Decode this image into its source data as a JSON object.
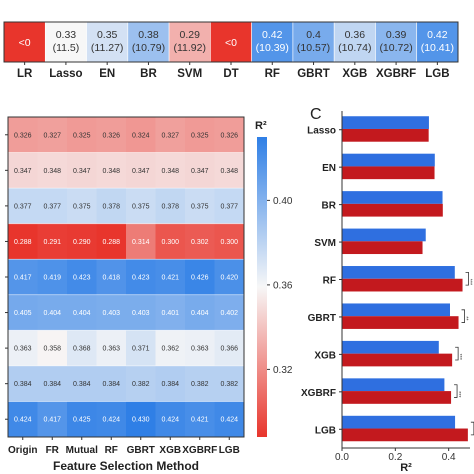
{
  "chart_data": [
    {
      "type": "heatmap",
      "title": "",
      "x_categories": [
        "LR",
        "Lasso",
        "EN",
        "BR",
        "SVM",
        "DT",
        "RF",
        "GBRT",
        "XGB",
        "XGBRF",
        "LGB"
      ],
      "cells": [
        {
          "main": "<0",
          "sub": "",
          "value": 0.2
        },
        {
          "main": "0.33",
          "sub": "(11.5)",
          "value": 0.33
        },
        {
          "main": "0.35",
          "sub": "(11.27)",
          "value": 0.35
        },
        {
          "main": "0.38",
          "sub": "(10.79)",
          "value": 0.38
        },
        {
          "main": "0.29",
          "sub": "(11.92)",
          "value": 0.29
        },
        {
          "main": "<0",
          "sub": "",
          "value": 0.2
        },
        {
          "main": "0.42",
          "sub": "(10.39)",
          "value": 0.42
        },
        {
          "main": "0.4",
          "sub": "(10.57)",
          "value": 0.4
        },
        {
          "main": "0.36",
          "sub": "(10.74)",
          "value": 0.36
        },
        {
          "main": "0.39",
          "sub": "(10.72)",
          "value": 0.39
        },
        {
          "main": "0.42",
          "sub": "(10.41)",
          "value": 0.42
        }
      ]
    },
    {
      "type": "heatmap",
      "xlabel": "Feature Selection Method",
      "x_categories": [
        "Origin",
        "FR",
        "Mutual",
        "RF",
        "GBRT",
        "XGB",
        "XGBRF",
        "LGB"
      ],
      "values": [
        [
          0.326,
          0.327,
          0.325,
          0.326,
          0.324,
          0.327,
          0.325,
          0.326
        ],
        [
          0.347,
          0.348,
          0.347,
          0.348,
          0.347,
          0.348,
          0.347,
          0.348
        ],
        [
          0.377,
          0.377,
          0.375,
          0.378,
          0.375,
          0.378,
          0.375,
          0.377
        ],
        [
          0.288,
          0.291,
          0.29,
          0.288,
          0.314,
          0.3,
          0.302,
          0.3
        ],
        [
          0.417,
          0.419,
          0.423,
          0.418,
          0.423,
          0.421,
          0.426,
          0.42
        ],
        [
          0.405,
          0.404,
          0.404,
          0.403,
          0.403,
          0.401,
          0.404,
          0.402
        ],
        [
          0.363,
          0.358,
          0.368,
          0.363,
          0.371,
          0.362,
          0.363,
          0.366
        ],
        [
          0.384,
          0.384,
          0.384,
          0.384,
          0.382,
          0.384,
          0.382,
          0.382
        ],
        [
          0.424,
          0.417,
          0.425,
          0.424,
          0.43,
          0.424,
          0.421,
          0.424
        ]
      ],
      "colorbar": {
        "label": "R²",
        "ticks": [
          "0.40",
          "0.36",
          "0.32"
        ],
        "tick_values": [
          0.4,
          0.36,
          0.32
        ],
        "range": [
          0.288,
          0.43
        ]
      },
      "colors": {
        "low": "#e8352c",
        "mid": "#f7f7f7",
        "high": "#2f7fe6"
      }
    },
    {
      "type": "bar",
      "orientation": "horizontal",
      "panel_label": "C",
      "categories": [
        "Lasso",
        "EN",
        "BR",
        "SVM",
        "RF",
        "GBRT",
        "XGB",
        "XGBRF",
        "LGB"
      ],
      "series": [
        {
          "color": "#2f6fe0",
          "values": [
            0.326,
            0.348,
            0.377,
            0.314,
            0.423,
            0.405,
            0.363,
            0.384,
            0.424
          ]
        },
        {
          "color": "#c3191e",
          "values": [
            0.325,
            0.347,
            0.378,
            0.302,
            0.452,
            0.437,
            0.413,
            0.409,
            0.472
          ]
        }
      ],
      "significance": [
        "***",
        "**",
        "***",
        "***",
        "*"
      ],
      "xlabel": "R²",
      "xticks": [
        "0.0",
        "0.2",
        "0.4"
      ],
      "xlim": [
        0,
        0.48
      ]
    }
  ]
}
